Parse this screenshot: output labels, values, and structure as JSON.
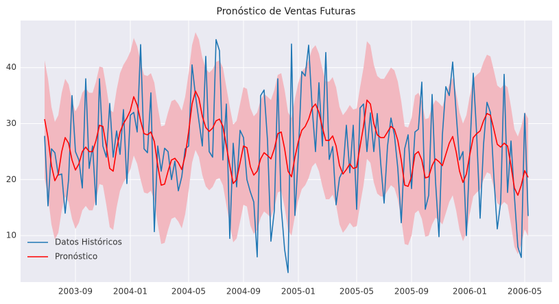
{
  "chart_data": {
    "type": "line",
    "title": "Pronóstico de Ventas Futuras",
    "x": [
      "2003-06",
      "2003-07",
      "2003-07",
      "2003-07",
      "2003-07",
      "2003-08",
      "2003-08",
      "2003-08",
      "2003-08",
      "2003-09",
      "2003-09",
      "2003-09",
      "2003-09",
      "2003-10",
      "2003-10",
      "2003-10",
      "2003-10",
      "2003-11",
      "2003-11",
      "2003-11",
      "2003-11",
      "2003-12",
      "2003-12",
      "2003-12",
      "2003-12",
      "2004-01",
      "2004-01",
      "2004-01",
      "2004-01",
      "2004-02",
      "2004-02",
      "2004-02",
      "2004-02",
      "2004-03",
      "2004-03",
      "2004-03",
      "2004-03",
      "2004-03",
      "2004-04",
      "2004-04",
      "2004-04",
      "2004-04",
      "2004-05",
      "2004-05",
      "2004-05",
      "2004-05",
      "2004-06",
      "2004-06",
      "2004-06",
      "2004-06",
      "2004-07",
      "2004-07",
      "2004-07",
      "2004-07",
      "2004-08",
      "2004-08",
      "2004-08",
      "2004-08",
      "2004-09",
      "2004-09",
      "2004-09",
      "2004-09",
      "2004-10",
      "2004-10",
      "2004-10",
      "2004-10",
      "2004-11",
      "2004-11",
      "2004-11",
      "2004-11",
      "2004-12",
      "2004-12",
      "2004-12",
      "2004-12",
      "2005-01",
      "2005-01",
      "2005-01",
      "2005-01",
      "2005-01",
      "2005-02",
      "2005-02",
      "2005-02",
      "2005-02",
      "2005-03",
      "2005-03",
      "2005-03",
      "2005-03",
      "2005-04",
      "2005-04",
      "2005-04",
      "2005-04",
      "2005-05",
      "2005-05",
      "2005-05",
      "2005-05",
      "2005-06",
      "2005-06",
      "2005-06",
      "2005-06",
      "2005-07",
      "2005-07",
      "2005-07",
      "2005-07",
      "2005-08",
      "2005-08",
      "2005-08",
      "2005-08",
      "2005-09",
      "2005-09",
      "2005-09",
      "2005-09",
      "2005-10",
      "2005-10",
      "2005-10",
      "2005-10",
      "2005-10",
      "2005-11",
      "2005-11",
      "2005-11",
      "2005-11",
      "2005-12",
      "2005-12",
      "2005-12",
      "2005-12",
      "2006-01",
      "2006-01",
      "2006-01",
      "2006-01",
      "2006-02",
      "2006-02",
      "2006-02",
      "2006-02",
      "2006-03",
      "2006-03",
      "2006-03",
      "2006-03",
      "2006-04",
      "2006-04",
      "2006-04",
      "2006-04",
      "2006-05",
      "2006-05"
    ],
    "series": [
      {
        "name": "Datos Históricos",
        "color": "#1f77b4",
        "values": [
          27.8,
          15.3,
          25.5,
          24.8,
          20.8,
          21,
          14,
          20,
          35,
          25,
          23.5,
          18.5,
          38,
          22,
          26,
          15.5,
          38,
          26,
          24,
          33.6,
          24,
          28.7,
          24.5,
          32.5,
          19.3,
          31.5,
          32,
          28.5,
          44.1,
          25.5,
          24.8,
          35.5,
          10.7,
          26,
          21.5,
          25.6,
          25,
          20,
          23.3,
          18,
          20.5,
          25.5,
          26,
          40.5,
          35,
          30.5,
          26,
          42,
          25,
          24,
          45,
          43,
          23.5,
          33.5,
          9.5,
          26.5,
          18.7,
          28.8,
          27.5,
          20,
          17.8,
          16,
          6.2,
          35,
          36,
          27,
          9,
          14.5,
          38,
          15,
          7.5,
          3.4,
          44.2,
          13.6,
          24.5,
          39.3,
          38.5,
          44,
          33,
          25,
          37.3,
          26,
          42.7,
          23.6,
          25.9,
          15.5,
          20.3,
          21.6,
          29.7,
          21.2,
          29.7,
          14.7,
          32.8,
          33.5,
          25,
          31.9,
          25,
          31.8,
          23,
          15.8,
          26,
          31,
          28,
          22,
          12.3,
          25.5,
          28,
          18.4,
          28.5,
          29,
          37.4,
          14.7,
          17.2,
          35.2,
          19.6,
          9.8,
          28,
          36.6,
          35,
          41,
          32,
          23.5,
          25,
          10,
          25,
          39,
          28,
          13.1,
          26.3,
          33.8,
          32,
          20.5,
          11.2,
          16,
          38.8,
          17.7,
          26.9,
          17,
          8,
          6.1,
          31.8,
          13.5
        ]
      },
      {
        "name": "Pronóstico",
        "color": "#ff0000",
        "band": 10.5,
        "band_color": "#f2b8c0",
        "values": [
          30.8,
          27.5,
          22.5,
          19.8,
          21,
          25,
          27.5,
          26.5,
          23.5,
          21.7,
          22.8,
          25,
          25.8,
          25,
          25,
          27,
          29.7,
          29.5,
          26,
          22,
          21.5,
          25.5,
          28.5,
          30,
          31,
          32.3,
          34.8,
          33.3,
          30.5,
          28.2,
          28,
          28.5,
          26.8,
          22.5,
          19,
          19.2,
          21.5,
          23.5,
          23.8,
          23,
          21.8,
          24.3,
          28.5,
          33.5,
          35.8,
          34.5,
          31.3,
          29.3,
          28.6,
          29.2,
          30.5,
          30.8,
          29.5,
          26,
          22.5,
          19.3,
          20,
          23,
          26,
          25.7,
          22.3,
          20.8,
          21.5,
          23.7,
          24.8,
          24.3,
          23.7,
          25.5,
          28.2,
          28.5,
          25.5,
          21.5,
          20.5,
          24,
          26.8,
          28.8,
          29.5,
          30.8,
          32.8,
          33.5,
          32,
          29.3,
          27,
          27,
          27.8,
          26,
          22.5,
          21,
          21.8,
          22.8,
          22,
          22.2,
          26,
          29.5,
          34.2,
          33.5,
          30,
          28,
          27.5,
          27.5,
          28.5,
          29.5,
          29,
          27,
          23.5,
          19,
          18.8,
          20.5,
          24.5,
          25,
          23.5,
          20.3,
          20.5,
          22.5,
          23.7,
          23.2,
          22.5,
          24.5,
          26.5,
          27.7,
          25,
          21.5,
          19.5,
          21,
          24.5,
          27.5,
          28.2,
          28.7,
          30.5,
          31.8,
          31.5,
          29,
          26.3,
          25.8,
          26.5,
          26,
          22.5,
          18.5,
          17.2,
          19,
          21.6,
          20.4
        ]
      }
    ],
    "ylim": [
      1.7,
      48.4
    ],
    "yticks": [
      10,
      20,
      30,
      40
    ],
    "xticks": [
      "2003-09",
      "2004-01",
      "2004-05",
      "2004-09",
      "2005-01",
      "2005-05",
      "2005-09",
      "2006-01",
      "2006-05"
    ],
    "grid": true,
    "legend": "lower left"
  }
}
